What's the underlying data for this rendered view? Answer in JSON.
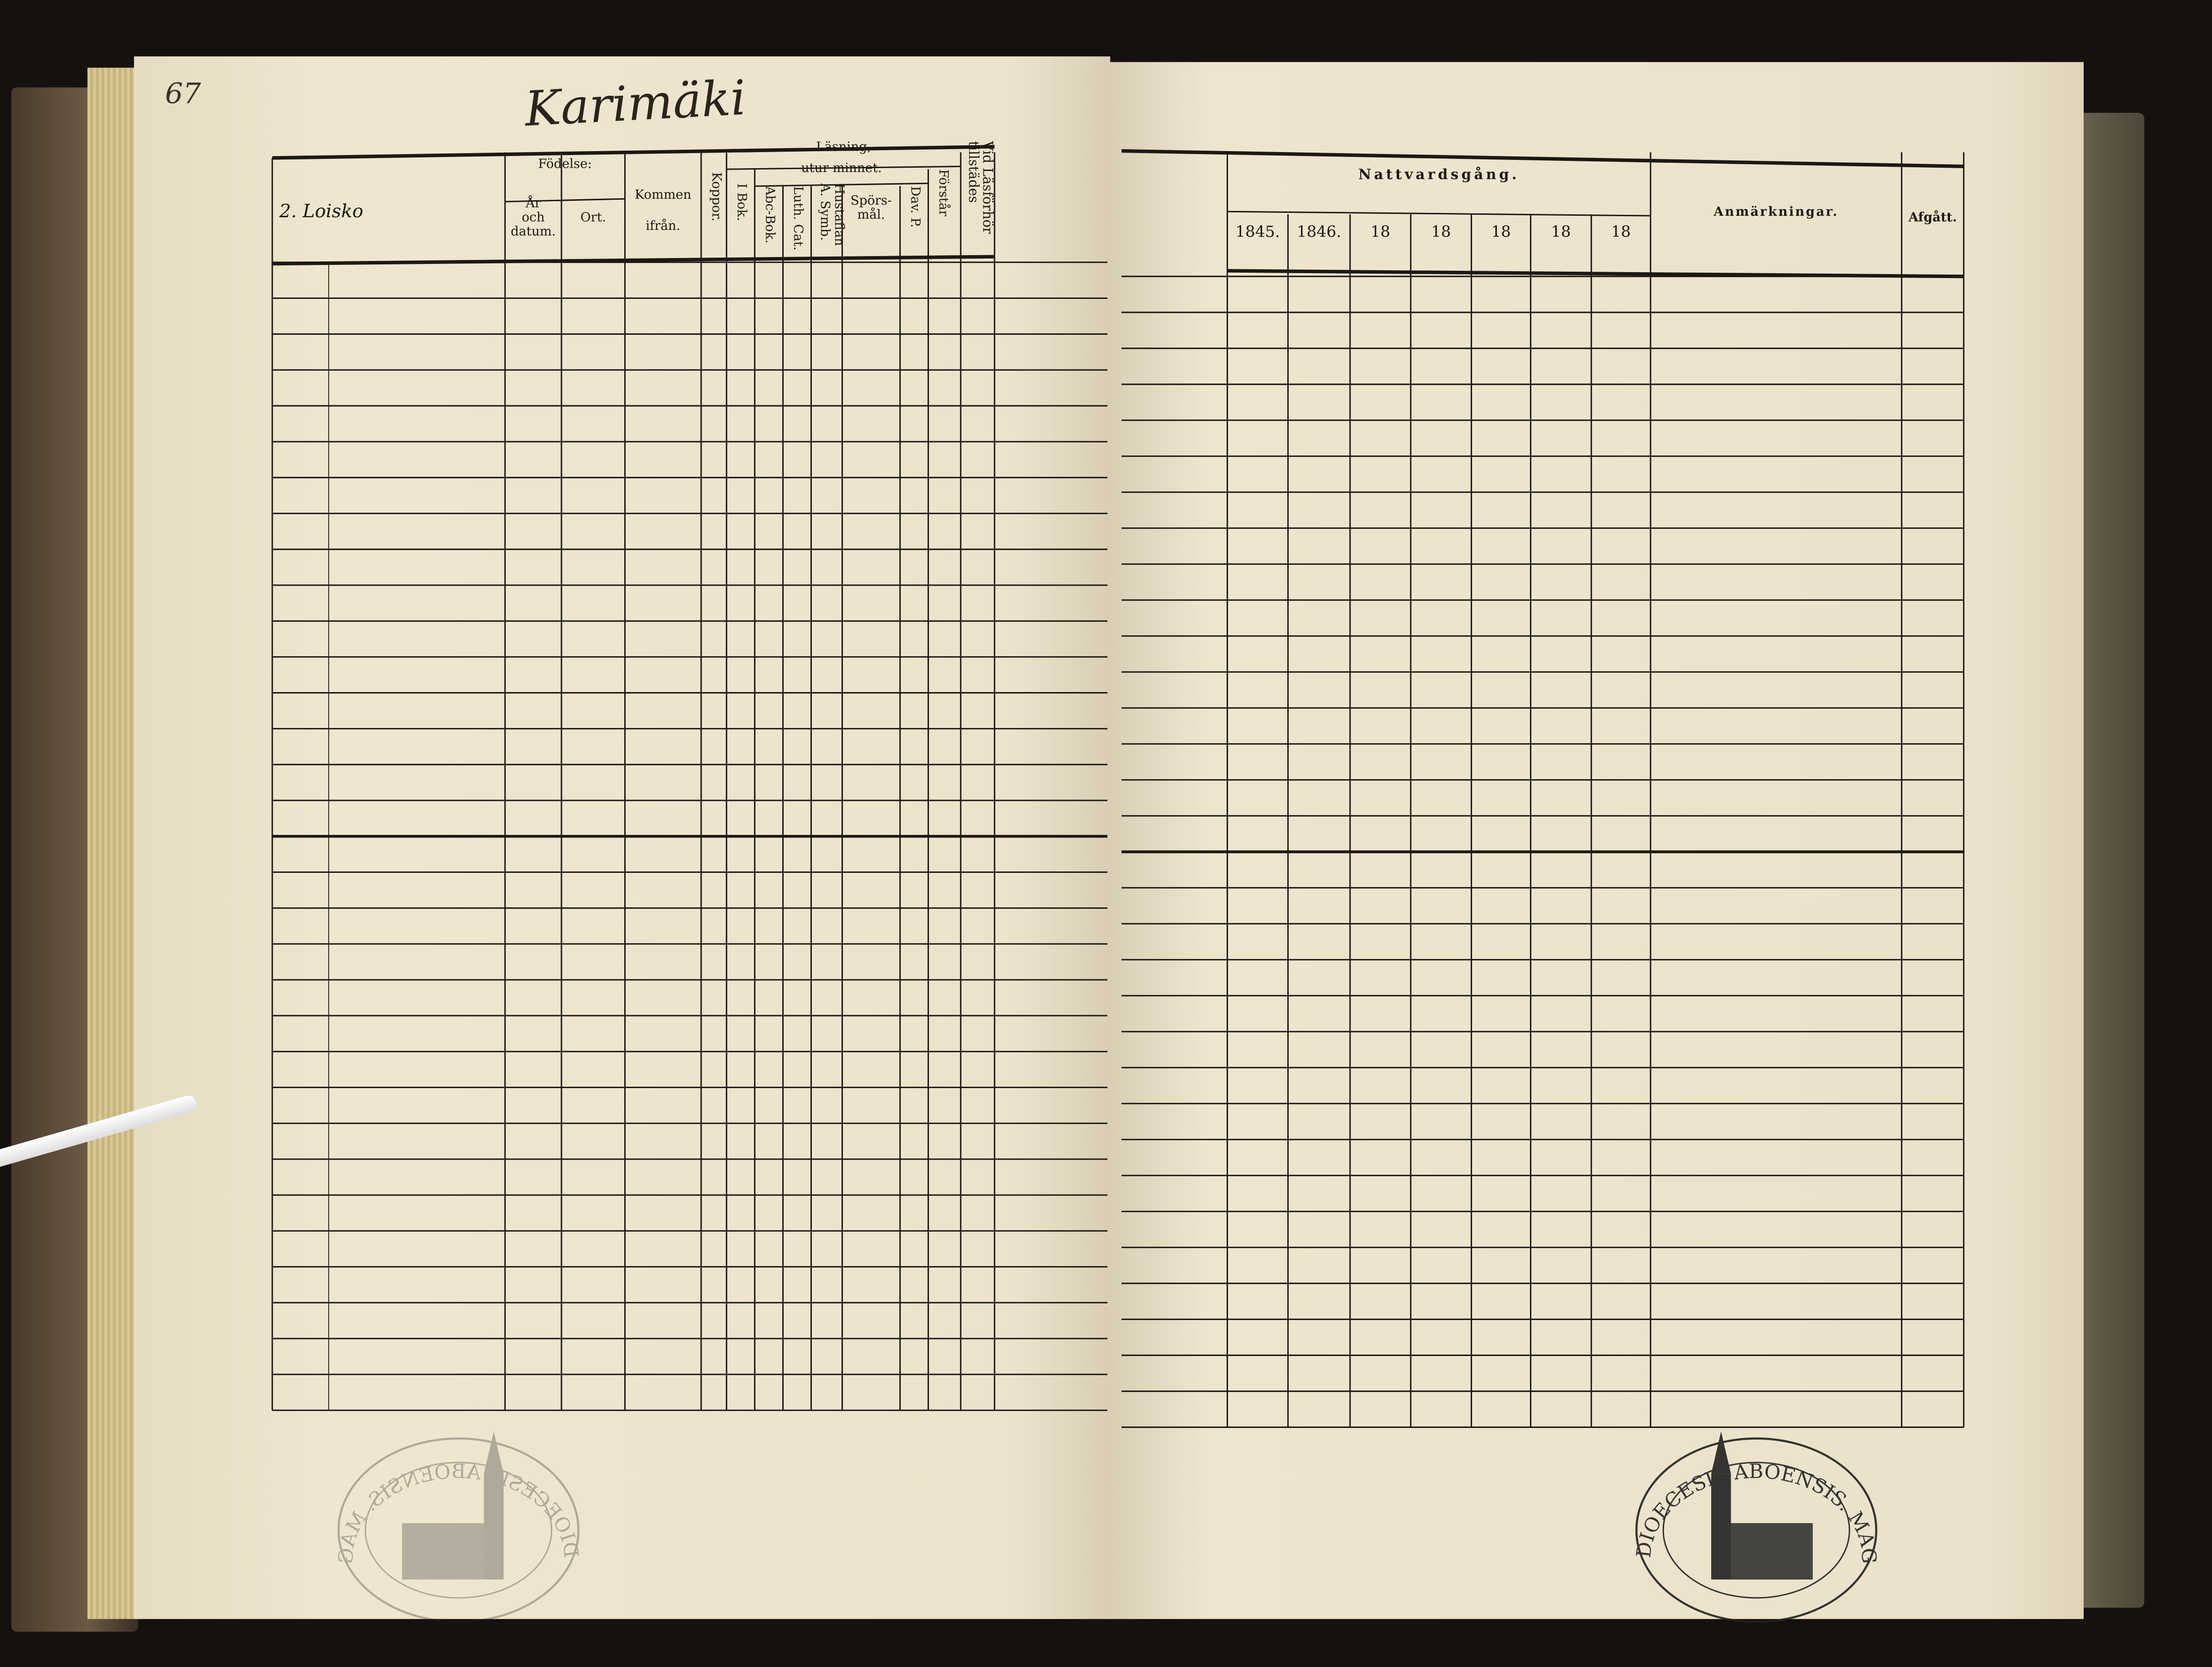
{
  "left_page": {
    "page_number": "67",
    "village_title": "Karimäki",
    "household": "2. Loisko",
    "headers": {
      "fodelse": "Födelse:",
      "ar_och_datum": [
        "År",
        "och",
        "datum."
      ],
      "ort": "Ort.",
      "kommen_ifran": [
        "Kommen",
        "ifrån."
      ],
      "koppor": "Koppor.",
      "lasning": "Läsning,",
      "i_bok": "I Bok.",
      "utur_minnet": "utur minnet.",
      "abc_bok": "Abc-Bok.",
      "luth_cat": "Luth. Cat.",
      "hustaflan": "Hustaflan A. Symb.",
      "sporsmal": [
        "Spörs-",
        "mål."
      ],
      "dav_p": "Dav. P.",
      "forstar": "Förstår",
      "vid_lasforhor": "Vid Läsförhör tillstädes"
    }
  },
  "right_page": {
    "headers": {
      "nattvardsgang": "Nattvardsgång.",
      "years": [
        "1845.",
        "1846.",
        "18",
        "18",
        "18",
        "18",
        "18"
      ],
      "anmarkningar": "Anmärkningar.",
      "afgatt": "Afgått."
    }
  },
  "stamps": [
    {
      "text": "DIOECESIS ABOENSIS. MAGN. FINL.",
      "side": "left",
      "faded": true
    },
    {
      "text": "DIOECESIS ABOENSIS. MAGN. FINL.",
      "side": "right",
      "faded": false
    }
  ],
  "colors": {
    "paper": "#ede3cc",
    "ink": "#1d1812",
    "background": "#15110e"
  }
}
